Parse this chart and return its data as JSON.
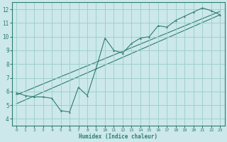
{
  "xlabel": "Humidex (Indice chaleur)",
  "background_color": "#cce8ea",
  "grid_color": "#99cccc",
  "line_color": "#2e7d6e",
  "xlim": [
    -0.5,
    23.5
  ],
  "ylim": [
    3.5,
    12.5
  ],
  "xticks": [
    0,
    1,
    2,
    3,
    4,
    5,
    6,
    7,
    8,
    9,
    10,
    11,
    12,
    13,
    14,
    15,
    16,
    17,
    18,
    19,
    20,
    21,
    22,
    23
  ],
  "yticks": [
    4,
    5,
    6,
    7,
    8,
    9,
    10,
    11,
    12
  ],
  "scatter_x": [
    0,
    1,
    2,
    3,
    4,
    5,
    6,
    7,
    8,
    9,
    10,
    11,
    12,
    13,
    14,
    15,
    16,
    17,
    18,
    19,
    20,
    21,
    22,
    23
  ],
  "scatter_y": [
    5.9,
    5.7,
    5.6,
    5.6,
    5.5,
    4.6,
    4.5,
    6.3,
    5.7,
    7.7,
    9.9,
    9.0,
    8.8,
    9.5,
    9.9,
    10.0,
    10.8,
    10.7,
    11.2,
    11.5,
    11.8,
    12.1,
    11.9,
    11.6
  ],
  "reg_line1": [
    [
      0,
      23
    ],
    [
      5.75,
      11.85
    ]
  ],
  "reg_line2": [
    [
      0,
      23
    ],
    [
      5.1,
      11.6
    ]
  ]
}
